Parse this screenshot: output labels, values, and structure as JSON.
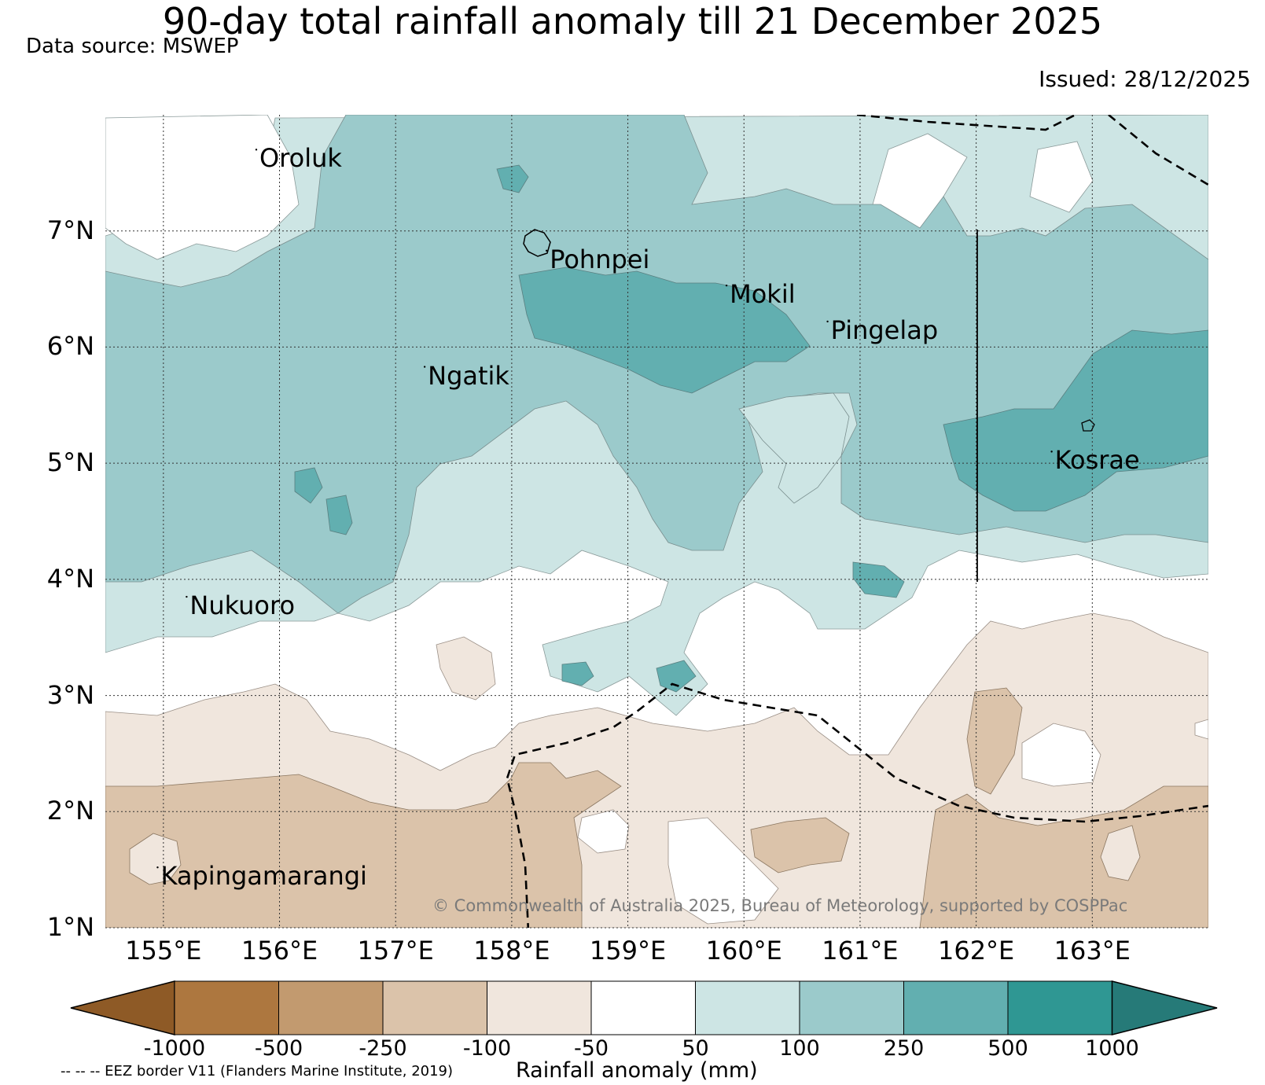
{
  "title": "90-day total rainfall anomaly till 21 December 2025",
  "data_source": "Data source: MSWEP",
  "issued": "Issued: 28/12/2025",
  "credit": "© Commonwealth of Australia 2025, Bureau of Meteorology, supported by COSPPac",
  "eez_note": "-- -- -- EEZ border V11 (Flanders Marine Institute, 2019)",
  "map": {
    "lon_range": [
      154.5,
      164.0
    ],
    "lat_range": [
      1.0,
      8.0
    ],
    "lon_ticks": [
      {
        "value": 155,
        "label": "155°E"
      },
      {
        "value": 156,
        "label": "156°E"
      },
      {
        "value": 157,
        "label": "157°E"
      },
      {
        "value": 158,
        "label": "158°E"
      },
      {
        "value": 159,
        "label": "159°E"
      },
      {
        "value": 160,
        "label": "160°E"
      },
      {
        "value": 161,
        "label": "161°E"
      },
      {
        "value": 162,
        "label": "162°E"
      },
      {
        "value": 163,
        "label": "163°E"
      }
    ],
    "lat_ticks": [
      {
        "value": 7,
        "label": "7°N"
      },
      {
        "value": 6,
        "label": "6°N"
      },
      {
        "value": 5,
        "label": "5°N"
      },
      {
        "value": 4,
        "label": "4°N"
      },
      {
        "value": 3,
        "label": "3°N"
      },
      {
        "value": 2,
        "label": "2°N"
      },
      {
        "value": 1,
        "label": "1°N"
      }
    ],
    "places": [
      {
        "name": "Oroluk",
        "lon": 155.8,
        "lat": 7.7
      },
      {
        "name": "Pohnpei",
        "lon": 158.3,
        "lat": 6.83
      },
      {
        "name": "Mokil",
        "lon": 159.85,
        "lat": 6.53
      },
      {
        "name": "Pingelap",
        "lon": 160.72,
        "lat": 6.22
      },
      {
        "name": "Ngatik",
        "lon": 157.25,
        "lat": 5.83
      },
      {
        "name": "Kosrae",
        "lon": 162.65,
        "lat": 5.1
      },
      {
        "name": "Nukuoro",
        "lon": 155.2,
        "lat": 3.85
      },
      {
        "name": "Kapingamarangi",
        "lon": 154.95,
        "lat": 1.52
      }
    ]
  },
  "colorbar": {
    "title": "Rainfall anomaly (mm)",
    "ticks": [
      "-1000",
      "-500",
      "-250",
      "-100",
      "-50",
      "50",
      "100",
      "250",
      "500",
      "1000"
    ],
    "colors": [
      "#8e5a26",
      "#ad773f",
      "#c29a6f",
      "#dbc3aa",
      "#f0e6dd",
      "#ffffff",
      "#cde5e4",
      "#9bcacb",
      "#62afb0",
      "#2f9793",
      "#267a78"
    ]
  }
}
